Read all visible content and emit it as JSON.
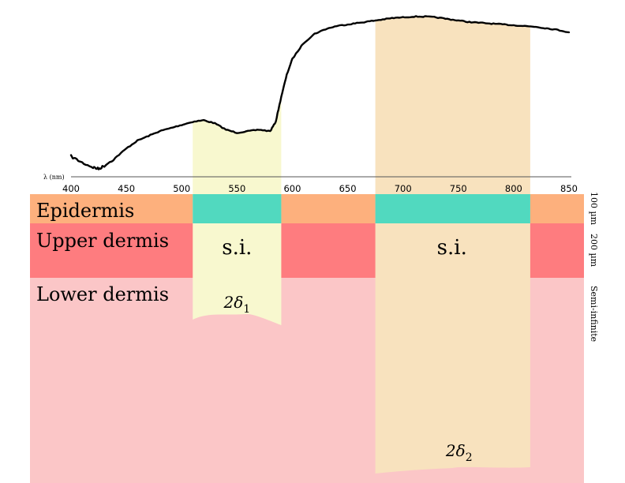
{
  "chart_data": {
    "type": "line",
    "x_axis_label": "λ (nm)",
    "x_ticks": [
      400,
      450,
      500,
      550,
      600,
      650,
      700,
      750,
      800,
      850
    ],
    "xlim": [
      400,
      850
    ],
    "series": [
      {
        "x": [
          400,
          410,
          420,
          425,
          430,
          440,
          450,
          460,
          470,
          480,
          490,
          500,
          510,
          520,
          530,
          540,
          550,
          560,
          570,
          580,
          585,
          590,
          595,
          600,
          610,
          620,
          630,
          640,
          650,
          660,
          670,
          680,
          690,
          700,
          710,
          720,
          730,
          740,
          750,
          760,
          770,
          780,
          790,
          800,
          810,
          820,
          830,
          840,
          850
        ],
        "y": [
          0.1,
          0.06,
          0.03,
          0.02,
          0.04,
          0.09,
          0.15,
          0.2,
          0.23,
          0.26,
          0.28,
          0.3,
          0.32,
          0.33,
          0.31,
          0.27,
          0.25,
          0.26,
          0.27,
          0.26,
          0.32,
          0.48,
          0.62,
          0.72,
          0.82,
          0.88,
          0.91,
          0.93,
          0.94,
          0.95,
          0.96,
          0.97,
          0.98,
          0.985,
          0.99,
          0.99,
          0.985,
          0.975,
          0.965,
          0.955,
          0.95,
          0.945,
          0.94,
          0.935,
          0.93,
          0.925,
          0.915,
          0.905,
          0.89
        ]
      }
    ],
    "grid": false,
    "legend": "none"
  },
  "bands": [
    {
      "name": "band-1",
      "from": 510,
      "to": 590,
      "label": "s.i.",
      "depth_label_text": "2δ",
      "depth_label_sub": "1"
    },
    {
      "name": "band-2",
      "from": 675,
      "to": 815,
      "label": "s.i.",
      "depth_label_text": "2δ",
      "depth_label_sub": "2"
    }
  ],
  "layers": [
    {
      "name": "epidermis",
      "label": "Epidermis",
      "thickness": "100 µm",
      "color": "#FDB07D"
    },
    {
      "name": "upper-dermis",
      "label": "Upper dermis",
      "thickness": "200 µm",
      "color": "#FE7C7F"
    },
    {
      "name": "lower-dermis",
      "label": "Lower dermis",
      "thickness": "Semi-infinite",
      "color": "#FBC6C7"
    }
  ],
  "colors": {
    "band_1": "#F8F8CF",
    "band_2": "#F8E2BE",
    "epidermis_overlap": "#51D9BF",
    "curve": "#000000"
  }
}
